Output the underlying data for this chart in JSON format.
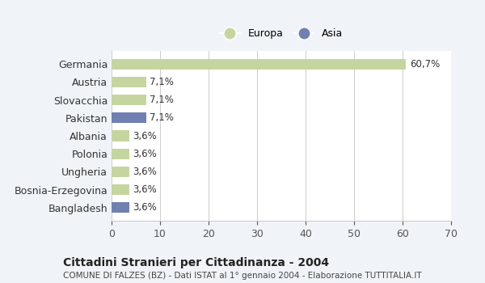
{
  "categories": [
    "Germania",
    "Austria",
    "Slovacchia",
    "Pakistan",
    "Albania",
    "Polonia",
    "Ungheria",
    "Bosnia-Erzegovina",
    "Bangladesh"
  ],
  "values": [
    60.7,
    7.1,
    7.1,
    7.1,
    3.6,
    3.6,
    3.6,
    3.6,
    3.6
  ],
  "labels": [
    "60,7%",
    "7,1%",
    "7,1%",
    "7,1%",
    "3,6%",
    "3,6%",
    "3,6%",
    "3,6%",
    "3,6%"
  ],
  "continent": [
    "Europa",
    "Europa",
    "Europa",
    "Asia",
    "Europa",
    "Europa",
    "Europa",
    "Europa",
    "Asia"
  ],
  "europa_color": "#c5d5a0",
  "asia_color": "#7080b0",
  "background_color": "#f0f4f8",
  "plot_bg_color": "#ffffff",
  "xlim": [
    0,
    70
  ],
  "xticks": [
    0,
    10,
    20,
    30,
    40,
    50,
    60,
    70
  ],
  "title": "Cittadini Stranieri per Cittadinanza - 2004",
  "subtitle": "COMUNE DI FALZES (BZ) - Dati ISTAT al 1° gennaio 2004 - Elaborazione TUTTITALIA.IT",
  "legend_europa": "Europa",
  "legend_asia": "Asia"
}
